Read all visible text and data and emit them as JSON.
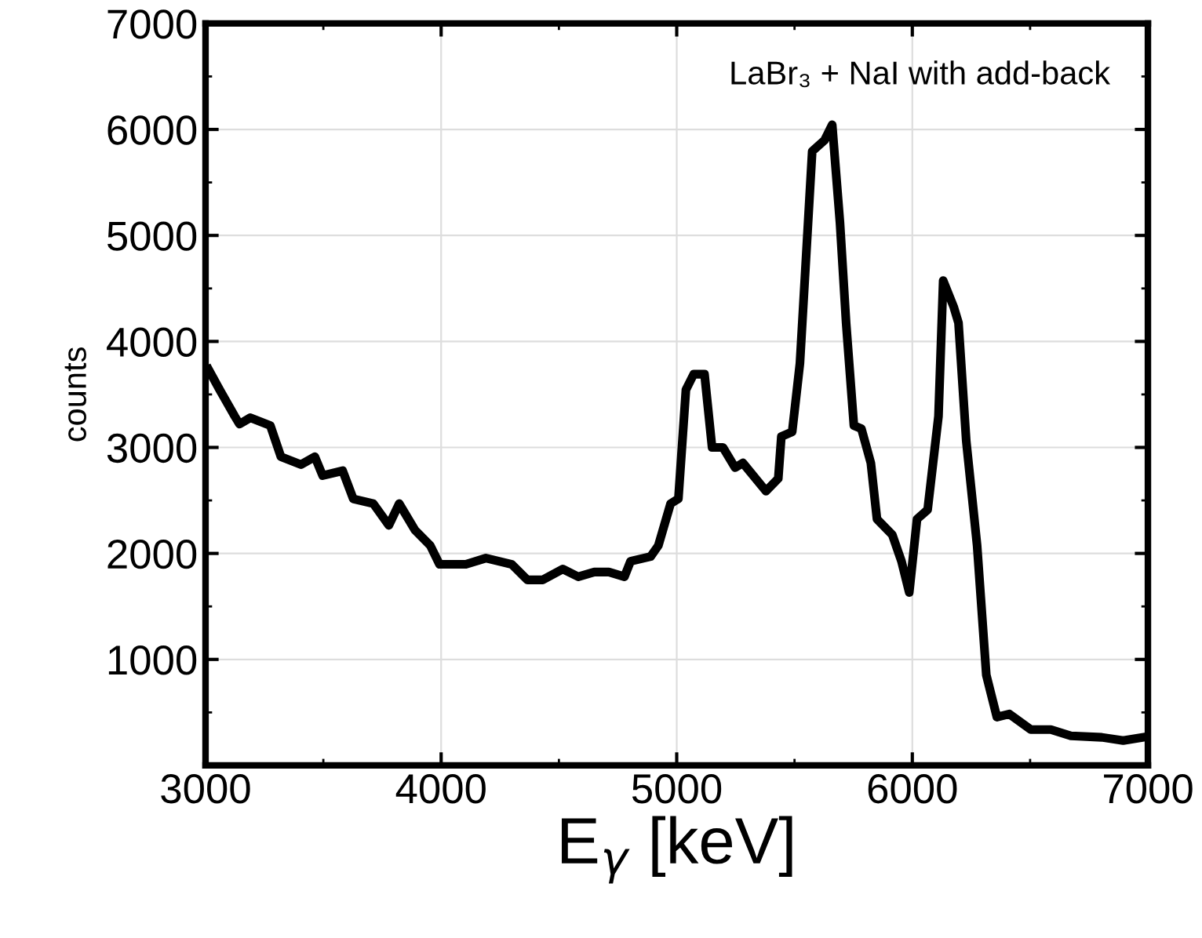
{
  "chart_data": {
    "type": "line",
    "xlabel": "E$_{γ}$ [keV]",
    "ylabel": "counts",
    "annotations": [
      "LaBr₃ + NaI with add-back"
    ],
    "xlim": [
      3000,
      7000
    ],
    "xticks": [
      3000,
      4000,
      5000,
      6000,
      7000
    ],
    "ylim": [
      0,
      7000
    ],
    "yticks": [
      1000,
      2000,
      3000,
      4000,
      5000,
      6000,
      7000
    ],
    "grid": true,
    "marker": "none",
    "line_style": "solid",
    "series": [
      {
        "color": "#000000",
        "x": [
          3013,
          3060,
          3124,
          3144,
          3190,
          3275,
          3320,
          3405,
          3464,
          3497,
          3582,
          3627,
          3712,
          3778,
          3822,
          3889,
          3954,
          3993,
          4105,
          4190,
          4300,
          4366,
          4431,
          4516,
          4582,
          4650,
          4712,
          4778,
          4804,
          4889,
          4922,
          4974,
          5007,
          5039,
          5072,
          5118,
          5150,
          5196,
          5248,
          5281,
          5379,
          5431,
          5444,
          5490,
          5523,
          5575,
          5627,
          5660,
          5693,
          5719,
          5752,
          5784,
          5824,
          5850,
          5915,
          5954,
          5987,
          6020,
          6065,
          6111,
          6131,
          6176,
          6196,
          6229,
          6275,
          6314,
          6359,
          6412,
          6503,
          6588,
          6673,
          6804,
          6895,
          6980
        ],
        "values": [
          3735,
          3544,
          3294,
          3220,
          3280,
          3206,
          2912,
          2838,
          2912,
          2735,
          2780,
          2515,
          2470,
          2265,
          2470,
          2220,
          2074,
          1897,
          1897,
          1956,
          1897,
          1750,
          1750,
          1853,
          1780,
          1824,
          1824,
          1780,
          1926,
          1970,
          2074,
          2470,
          2515,
          3544,
          3691,
          3691,
          3000,
          3000,
          2809,
          2853,
          2588,
          2706,
          3103,
          3147,
          3794,
          5794,
          5897,
          6044,
          5118,
          4176,
          3206,
          3176,
          2853,
          2324,
          2176,
          1926,
          1632,
          2324,
          2412,
          3294,
          4574,
          4324,
          4176,
          3059,
          2074,
          853,
          456,
          485,
          338,
          338,
          279,
          265,
          235,
          265
        ]
      }
    ]
  }
}
